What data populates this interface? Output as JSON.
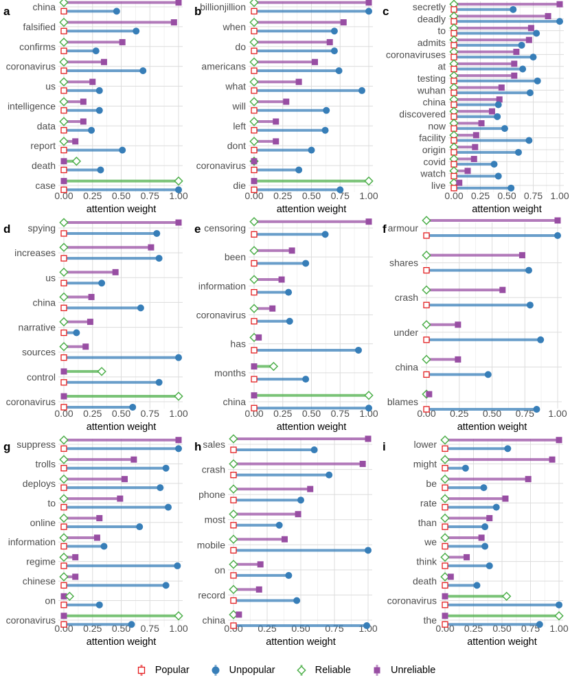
{
  "colors": {
    "popular": "#e41a1c",
    "unpopular": "#377eb8",
    "reliable": "#4daf4a",
    "unreliable": "#984ea3"
  },
  "legend": [
    {
      "key": "popular",
      "label": "Popular"
    },
    {
      "key": "unpopular",
      "label": "Unpopular"
    },
    {
      "key": "reliable",
      "label": "Reliable"
    },
    {
      "key": "unreliable",
      "label": "Unreliable"
    }
  ],
  "chart_data": [
    {
      "panel": "a",
      "type": "lollipop",
      "xlabel": "attention weight",
      "xlim": [
        0,
        1
      ],
      "xticks": [
        "0.00",
        "0.25",
        "0.50",
        "0.75",
        "1.00"
      ],
      "categories": [
        "china",
        "falsified",
        "confirms",
        "coronavirus",
        "us",
        "intelligence",
        "data",
        "report",
        "death",
        "case"
      ],
      "series": [
        {
          "name": "Unreliable",
          "values": [
            1.0,
            0.96,
            0.51,
            0.35,
            0.25,
            0.17,
            0.17,
            0.1,
            0.0,
            0.0
          ]
        },
        {
          "name": "Reliable",
          "values": [
            0.0,
            0.0,
            0.0,
            0.0,
            0.0,
            0.0,
            0.0,
            0.0,
            0.11,
            1.0
          ]
        },
        {
          "name": "Unpopular",
          "values": [
            0.46,
            0.63,
            0.28,
            0.69,
            0.31,
            0.31,
            0.24,
            0.51,
            0.32,
            1.0
          ]
        },
        {
          "name": "Popular",
          "values": [
            0,
            0,
            0,
            0,
            0,
            0,
            0,
            0,
            0,
            0
          ]
        }
      ]
    },
    {
      "panel": "b",
      "type": "lollipop",
      "xlabel": "attention weight",
      "xlim": [
        0,
        1
      ],
      "xticks": [
        "0.00",
        "0.25",
        "0.50",
        "0.75",
        "1.00"
      ],
      "categories": [
        "billionjillion",
        "when",
        "do",
        "americans",
        "what",
        "will",
        "left",
        "dont",
        "coronavirus",
        "die"
      ],
      "series": [
        {
          "name": "Unreliable",
          "values": [
            1.0,
            0.78,
            0.66,
            0.53,
            0.39,
            0.28,
            0.19,
            0.19,
            0.0,
            0.0
          ]
        },
        {
          "name": "Reliable",
          "values": [
            0.0,
            0.0,
            0.0,
            0.0,
            0.0,
            0.0,
            0.0,
            0.0,
            0.0,
            1.0
          ]
        },
        {
          "name": "Unpopular",
          "values": [
            1.0,
            0.7,
            0.7,
            0.74,
            0.94,
            0.63,
            0.62,
            0.5,
            0.39,
            0.75
          ]
        },
        {
          "name": "Popular",
          "values": [
            0,
            0,
            0,
            0,
            0,
            0,
            0,
            0,
            0,
            0
          ]
        }
      ]
    },
    {
      "panel": "c",
      "type": "lollipop",
      "xlabel": "attention weight",
      "xlim": [
        0,
        1
      ],
      "xticks": [
        "0.00",
        "0.25",
        "0.50",
        "0.75",
        "1.00"
      ],
      "categories": [
        "secretly",
        "deadly",
        "to",
        "admits",
        "coronaviruses",
        "at",
        "testing",
        "wuhan",
        "china",
        "discovered",
        "now",
        "facility",
        "origin",
        "covid",
        "watch",
        "live"
      ],
      "series": [
        {
          "name": "Unreliable",
          "values": [
            1.0,
            0.89,
            0.73,
            0.71,
            0.59,
            0.57,
            0.57,
            0.45,
            0.43,
            0.36,
            0.26,
            0.21,
            0.2,
            0.19,
            0.13,
            0.05
          ]
        },
        {
          "name": "Reliable",
          "values": [
            0,
            0,
            0,
            0,
            0,
            0,
            0,
            0,
            0,
            0,
            0,
            0,
            0,
            0,
            0,
            0
          ]
        },
        {
          "name": "Unpopular",
          "values": [
            0.56,
            1.0,
            0.78,
            0.64,
            0.75,
            0.65,
            0.79,
            0.72,
            0.42,
            0.41,
            0.48,
            0.71,
            0.61,
            0.38,
            0.42,
            0.54
          ]
        },
        {
          "name": "Popular",
          "values": [
            0,
            0,
            0,
            0,
            0,
            0,
            0,
            0,
            0,
            0,
            0,
            0,
            0,
            0,
            0,
            0
          ]
        }
      ]
    },
    {
      "panel": "d",
      "type": "lollipop",
      "xlabel": "attention weight",
      "xlim": [
        0,
        1
      ],
      "xticks": [
        "0.00",
        "0.25",
        "0.50",
        "0.75",
        "1.00"
      ],
      "categories": [
        "spying",
        "increases",
        "us",
        "china",
        "narrative",
        "sources",
        "control",
        "coronavirus"
      ],
      "series": [
        {
          "name": "Unreliable",
          "values": [
            1.0,
            0.76,
            0.45,
            0.24,
            0.23,
            0.19,
            0.0,
            0.0
          ]
        },
        {
          "name": "Reliable",
          "values": [
            0.0,
            0.0,
            0.0,
            0.0,
            0.0,
            0.0,
            0.33,
            1.0
          ]
        },
        {
          "name": "Unpopular",
          "values": [
            0.81,
            0.83,
            0.33,
            0.67,
            0.11,
            1.0,
            0.83,
            0.6
          ]
        },
        {
          "name": "Popular",
          "values": [
            0,
            0,
            0,
            0,
            0,
            0,
            0,
            0
          ]
        }
      ]
    },
    {
      "panel": "e",
      "type": "lollipop",
      "xlabel": "attention weight",
      "xlim": [
        0,
        1
      ],
      "xticks": [
        "0.00",
        "0.25",
        "0.50",
        "0.75",
        "1.00"
      ],
      "categories": [
        "censoring",
        "been",
        "information",
        "coronavirus",
        "has",
        "months",
        "china"
      ],
      "series": [
        {
          "name": "Unreliable",
          "values": [
            1.0,
            0.33,
            0.24,
            0.16,
            0.04,
            0.0,
            0.0
          ]
        },
        {
          "name": "Reliable",
          "values": [
            0.0,
            0.0,
            0.0,
            0.0,
            0.0,
            0.17,
            1.0
          ]
        },
        {
          "name": "Unpopular",
          "values": [
            0.62,
            0.45,
            0.3,
            0.31,
            0.91,
            0.45,
            1.0
          ]
        },
        {
          "name": "Popular",
          "values": [
            0,
            0,
            0,
            0,
            0,
            0,
            0
          ]
        }
      ]
    },
    {
      "panel": "f",
      "type": "lollipop",
      "xlabel": "attention weight",
      "xlim": [
        0,
        1
      ],
      "xticks": [
        "0.00",
        "0.25",
        "0.50",
        "0.75",
        "1.00"
      ],
      "categories": [
        "armour",
        "shares",
        "crash",
        "under",
        "china",
        "blames"
      ],
      "series": [
        {
          "name": "Unreliable",
          "values": [
            1.0,
            0.73,
            0.58,
            0.24,
            0.24,
            0.02
          ]
        },
        {
          "name": "Reliable",
          "values": [
            0,
            0,
            0,
            0,
            0,
            0
          ]
        },
        {
          "name": "Unpopular",
          "values": [
            1.0,
            0.78,
            0.79,
            0.87,
            0.47,
            0.84
          ]
        },
        {
          "name": "Popular",
          "values": [
            0,
            0,
            0,
            0,
            0,
            0
          ]
        }
      ]
    },
    {
      "panel": "g",
      "type": "lollipop",
      "xlabel": "attention weight",
      "xlim": [
        0,
        1
      ],
      "xticks": [
        "0.00",
        "0.25",
        "0.50",
        "0.75",
        "1.00"
      ],
      "categories": [
        "suppress",
        "trolls",
        "deploys",
        "to",
        "online",
        "information",
        "regime",
        "chinese",
        "on",
        "coronavirus"
      ],
      "series": [
        {
          "name": "Unreliable",
          "values": [
            1.0,
            0.61,
            0.53,
            0.49,
            0.31,
            0.29,
            0.1,
            0.1,
            0.0,
            0.0
          ]
        },
        {
          "name": "Reliable",
          "values": [
            0.0,
            0.0,
            0.0,
            0.0,
            0.0,
            0.0,
            0.0,
            0.0,
            0.05,
            1.0
          ]
        },
        {
          "name": "Unpopular",
          "values": [
            1.0,
            0.89,
            0.84,
            0.91,
            0.66,
            0.35,
            0.99,
            0.89,
            0.31,
            0.59
          ]
        },
        {
          "name": "Popular",
          "values": [
            0,
            0,
            0,
            0,
            0,
            0,
            0,
            0,
            0,
            0
          ]
        }
      ]
    },
    {
      "panel": "h",
      "type": "lollipop",
      "xlabel": "attention weight",
      "xlim": [
        0,
        1
      ],
      "xticks": [
        "0.00",
        "0.25",
        "0.50",
        "0.75",
        "1.00"
      ],
      "categories": [
        "sales",
        "crash",
        "phone",
        "most",
        "mobile",
        "on",
        "record",
        "china"
      ],
      "series": [
        {
          "name": "Unreliable",
          "values": [
            1.0,
            0.96,
            0.57,
            0.48,
            0.38,
            0.2,
            0.19,
            0.04
          ]
        },
        {
          "name": "Reliable",
          "values": [
            0,
            0,
            0,
            0,
            0,
            0,
            0,
            0
          ]
        },
        {
          "name": "Unpopular",
          "values": [
            0.6,
            0.71,
            0.5,
            0.34,
            1.0,
            0.41,
            0.47,
            0.99
          ]
        },
        {
          "name": "Popular",
          "values": [
            0,
            0,
            0,
            0,
            0,
            0,
            0,
            0
          ]
        }
      ]
    },
    {
      "panel": "i",
      "type": "lollipop",
      "xlabel": "attention weight",
      "xlim": [
        0,
        1
      ],
      "xticks": [
        "0.00",
        "0.25",
        "0.50",
        "0.75",
        "1.00"
      ],
      "categories": [
        "lower",
        "might",
        "be",
        "rate",
        "than",
        "we",
        "think",
        "death",
        "coronavirus",
        "the"
      ],
      "series": [
        {
          "name": "Unreliable",
          "values": [
            1.0,
            0.94,
            0.73,
            0.53,
            0.39,
            0.32,
            0.19,
            0.05,
            0.0,
            0.0
          ]
        },
        {
          "name": "Reliable",
          "values": [
            0.0,
            0.0,
            0.0,
            0.0,
            0.0,
            0.0,
            0.0,
            0.0,
            0.54,
            1.0
          ]
        },
        {
          "name": "Unpopular",
          "values": [
            0.55,
            0.18,
            0.34,
            0.45,
            0.35,
            0.35,
            0.39,
            0.28,
            1.0,
            0.83
          ]
        },
        {
          "name": "Popular",
          "values": [
            0,
            0,
            0,
            0,
            0,
            0,
            0,
            0,
            0,
            0
          ]
        }
      ]
    }
  ]
}
